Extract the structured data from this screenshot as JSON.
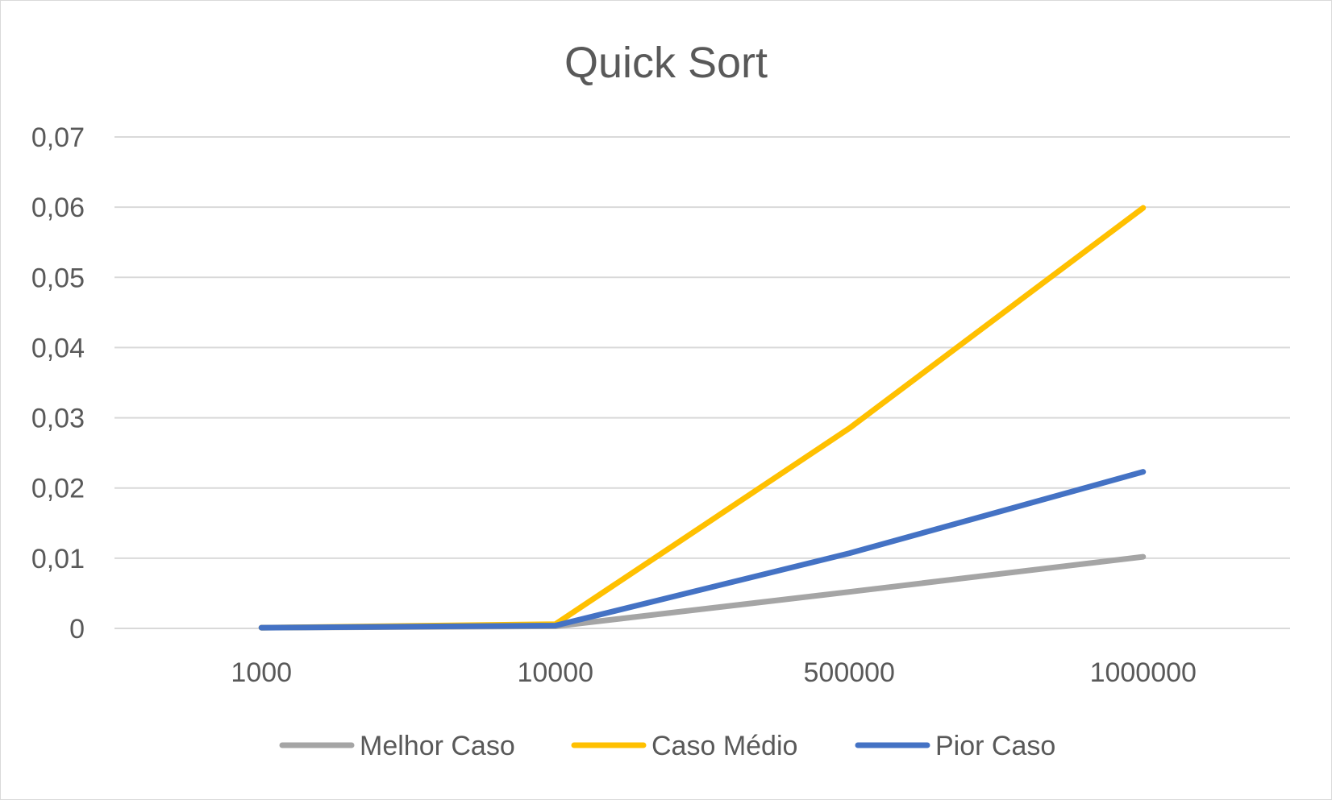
{
  "chart_data": {
    "type": "line",
    "title": "Quick Sort",
    "xlabel": "",
    "ylabel": "",
    "categories": [
      "1000",
      "10000",
      "500000",
      "1000000"
    ],
    "y_ticks": [
      "0",
      "0,01",
      "0,02",
      "0,03",
      "0,04",
      "0,05",
      "0,06",
      "0,07"
    ],
    "ylim": [
      0,
      0.07
    ],
    "grid": true,
    "legend_position": "bottom",
    "series": [
      {
        "name": "Melhor Caso",
        "color": "#a5a5a5",
        "values": [
          0.0001,
          0.0003,
          0.0052,
          0.0102
        ]
      },
      {
        "name": "Caso Médio",
        "color": "#ffc000",
        "values": [
          0.0001,
          0.0006,
          0.0285,
          0.0599
        ]
      },
      {
        "name": "Pior Caso",
        "color": "#4472c4",
        "values": [
          0.0001,
          0.0004,
          0.0107,
          0.0223
        ]
      }
    ]
  }
}
